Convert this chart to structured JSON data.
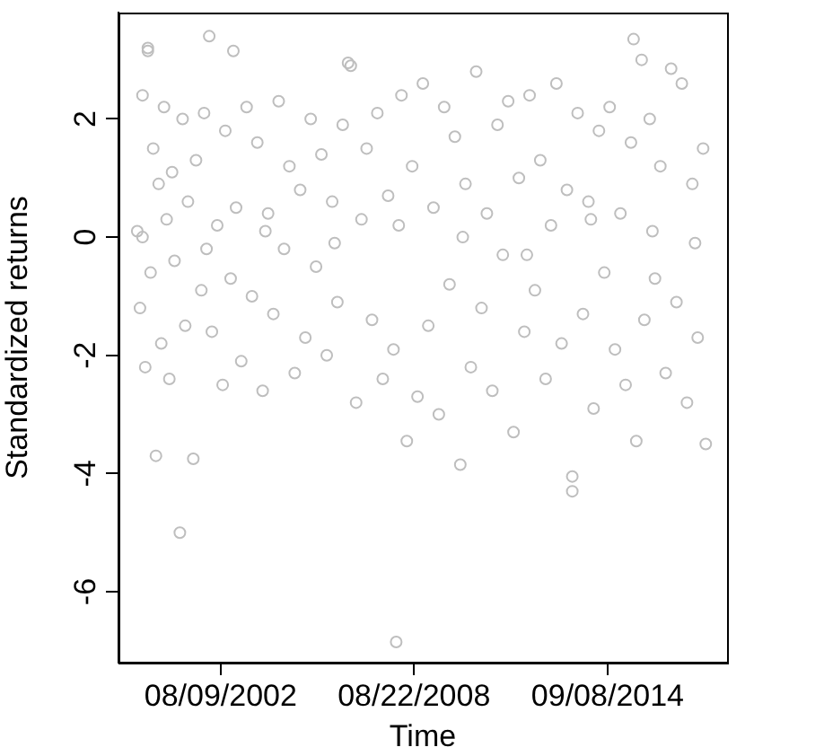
{
  "chart_data": {
    "type": "scatter",
    "xlabel": "Time",
    "ylabel": "Standardized returns",
    "marker": "circle",
    "grid": false,
    "legend": false,
    "xlim": [
      "1999-06-01",
      "2018-06-01"
    ],
    "ylim": [
      -7.2,
      3.8
    ],
    "xticks": [
      {
        "value": "2002-08-09",
        "label": "08/09/2002"
      },
      {
        "value": "2008-08-22",
        "label": "08/22/2008"
      },
      {
        "value": "2014-09-08",
        "label": "09/08/2014"
      }
    ],
    "yticks": [
      -6,
      -4,
      -2,
      0,
      2
    ],
    "series": [
      {
        "color": "#bebebe",
        "x": [
          "2000-01",
          "2000-02",
          "2000-03",
          "2000-04",
          "2000-05",
          "2000-05",
          "2000-06",
          "2000-07",
          "2000-08",
          "2000-09",
          "2000-10",
          "2000-11",
          "2000-12",
          "2001-01",
          "2001-02",
          "2001-03",
          "2001-05",
          "2001-06",
          "2001-07",
          "2001-08",
          "2001-10",
          "2001-11",
          "2002-01",
          "2002-02",
          "2002-04",
          "2002-05",
          "2002-07",
          "2002-09",
          "2002-10",
          "2002-12",
          "2003-01",
          "2003-02",
          "2003-04",
          "2003-06",
          "2003-08",
          "2003-10",
          "2003-12",
          "2004-02",
          "2004-04",
          "2004-06",
          "2004-08",
          "2004-10",
          "2004-12",
          "2005-02",
          "2005-04",
          "2005-06",
          "2005-08",
          "2005-10",
          "2005-12",
          "2006-02",
          "2006-04",
          "2006-06",
          "2006-08",
          "2006-09",
          "2006-11",
          "2007-01",
          "2007-03",
          "2007-05",
          "2007-07",
          "2007-09",
          "2007-11",
          "2008-01",
          "2008-02",
          "2008-04",
          "2008-06",
          "2008-08",
          "2008-10",
          "2008-12",
          "2009-02",
          "2009-04",
          "2009-06",
          "2009-08",
          "2009-10",
          "2009-12",
          "2010-02",
          "2010-04",
          "2010-06",
          "2010-08",
          "2010-10",
          "2010-12",
          "2011-02",
          "2011-04",
          "2011-06",
          "2011-08",
          "2011-10",
          "2011-12",
          "2012-02",
          "2012-04",
          "2012-06",
          "2012-08",
          "2012-10",
          "2012-12",
          "2013-02",
          "2013-04",
          "2013-06",
          "2013-08",
          "2013-08",
          "2013-10",
          "2013-12",
          "2014-02",
          "2014-04",
          "2014-06",
          "2014-08",
          "2014-10",
          "2014-12",
          "2015-02",
          "2015-04",
          "2015-06",
          "2015-07",
          "2015-08",
          "2015-10",
          "2015-11",
          "2016-01",
          "2016-03",
          "2016-05",
          "2016-07",
          "2016-09",
          "2016-11",
          "2017-01",
          "2017-03",
          "2017-05",
          "2017-07",
          "2017-09",
          "2017-10",
          "2000-03",
          "2002-03",
          "2004-01",
          "2006-03",
          "2008-03",
          "2010-03",
          "2012-03",
          "2014-03",
          "2016-02",
          "2017-06"
        ],
        "values": [
          0.1,
          -1.2,
          2.4,
          -2.2,
          3.15,
          3.2,
          -0.6,
          1.5,
          -3.7,
          0.9,
          -1.8,
          2.2,
          0.3,
          -2.4,
          1.1,
          -0.4,
          -5.0,
          2.0,
          -1.5,
          0.6,
          -3.75,
          1.3,
          -0.9,
          2.1,
          3.4,
          -1.6,
          0.2,
          -2.5,
          1.8,
          -0.7,
          3.15,
          0.5,
          -2.1,
          2.2,
          -1.0,
          1.6,
          -2.6,
          0.4,
          -1.3,
          2.3,
          -0.2,
          1.2,
          -2.3,
          0.8,
          -1.7,
          2.0,
          -0.5,
          1.4,
          -2.0,
          0.6,
          -1.1,
          1.9,
          2.95,
          2.9,
          -2.8,
          0.3,
          1.5,
          -1.4,
          2.1,
          -2.4,
          0.7,
          -1.9,
          -6.85,
          2.4,
          -3.45,
          1.2,
          -2.7,
          2.6,
          -1.5,
          0.5,
          -3.0,
          2.2,
          -0.8,
          1.7,
          -3.85,
          0.9,
          -2.2,
          2.8,
          -1.2,
          0.4,
          -2.6,
          1.9,
          -0.3,
          2.3,
          -3.3,
          1.0,
          -1.6,
          2.4,
          -0.9,
          1.3,
          -2.4,
          0.2,
          2.6,
          -1.8,
          0.8,
          -4.05,
          -4.3,
          2.1,
          -1.3,
          0.6,
          -2.9,
          1.8,
          -0.6,
          2.2,
          -1.9,
          0.4,
          -2.5,
          1.6,
          3.35,
          -3.45,
          3.0,
          -1.4,
          2.0,
          -0.7,
          1.2,
          -2.3,
          2.85,
          -1.1,
          2.6,
          -2.8,
          0.9,
          -1.7,
          1.5,
          -3.5,
          0.0,
          -0.2,
          0.1,
          -0.1,
          0.2,
          0.0,
          -0.3,
          0.3,
          0.1,
          -0.1
        ]
      }
    ]
  }
}
